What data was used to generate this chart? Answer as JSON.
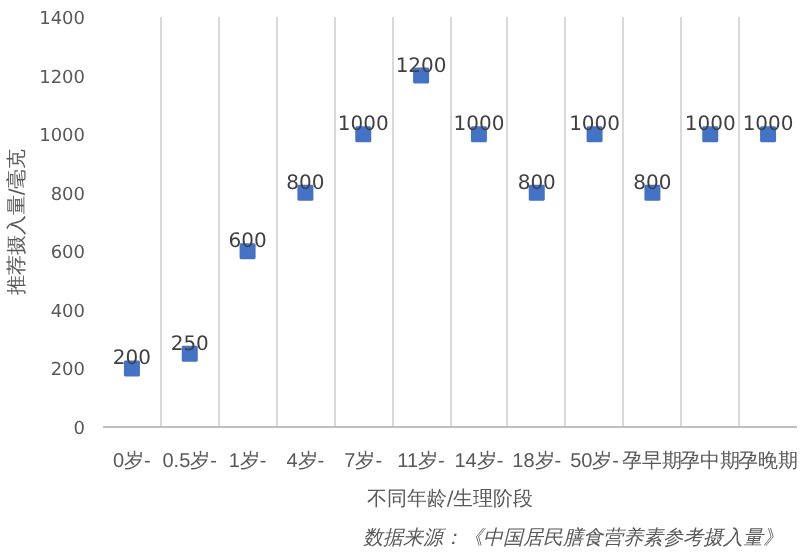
{
  "chart_data": {
    "type": "scatter",
    "xlabel": "不同年龄/生理阶段",
    "ylabel": "推荐摄入量/毫克",
    "categories": [
      "0岁-",
      "0.5岁-",
      "1岁-",
      "4岁-",
      "7岁-",
      "11岁-",
      "14岁-",
      "18岁-",
      "50岁-",
      "孕早期",
      "孕中期",
      "孕晚期"
    ],
    "values": [
      200,
      250,
      600,
      800,
      1000,
      1200,
      1000,
      800,
      1000,
      800,
      1000,
      1000
    ],
    "color": "#4472c4",
    "marker": "square",
    "data_labels": true,
    "ylim": [
      0,
      1400
    ],
    "yticks": [
      0,
      200,
      400,
      600,
      800,
      1000,
      1200,
      1400
    ],
    "grid": "x",
    "annotations": [
      "数据来源：《中国居民膳食营养素参考摄入量》"
    ]
  }
}
